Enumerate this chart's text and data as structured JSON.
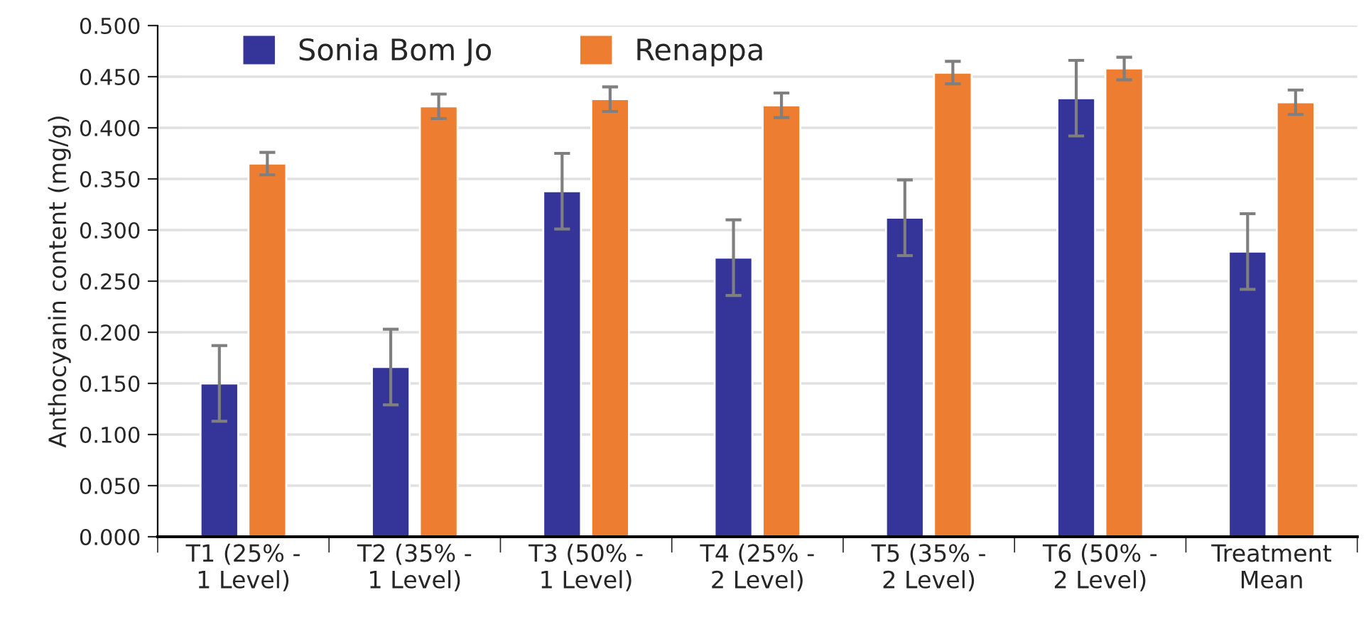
{
  "chart_data": {
    "type": "bar",
    "ylabel": "Anthocyanin content (mg/g)",
    "categories": [
      "T1 (25% -\n1 Level)",
      "T2 (35% -\n1 Level)",
      "T3 (50% -\n1 Level)",
      "T4 (25% -\n2 Level)",
      "T5 (35% -\n2 Level)",
      "T6 (50% -\n2 Level)",
      "Treatment\nMean"
    ],
    "series": [
      {
        "name": "Sonia Bom Jo",
        "color": "#353599",
        "values": [
          0.15,
          0.166,
          0.338,
          0.273,
          0.312,
          0.429,
          0.279
        ],
        "errors": [
          0.037,
          0.037,
          0.037,
          0.037,
          0.037,
          0.037,
          0.037
        ]
      },
      {
        "name": "Renappa",
        "color": "#ed7d31",
        "values": [
          0.365,
          0.421,
          0.428,
          0.422,
          0.454,
          0.458,
          0.425
        ],
        "errors": [
          0.011,
          0.012,
          0.012,
          0.012,
          0.011,
          0.011,
          0.012
        ]
      }
    ],
    "ylim": [
      0,
      0.5
    ],
    "yticks": [
      {
        "value": 0,
        "label": "0.000"
      },
      {
        "value": 0.05,
        "label": "0.050"
      },
      {
        "value": 0.1,
        "label": "0.100"
      },
      {
        "value": 0.15,
        "label": "0.150"
      },
      {
        "value": 0.2,
        "label": "0.200"
      },
      {
        "value": 0.25,
        "label": "0.250"
      },
      {
        "value": 0.3,
        "label": "0.300"
      },
      {
        "value": 0.35,
        "label": "0.350"
      },
      {
        "value": 0.4,
        "label": "0.400"
      },
      {
        "value": 0.45,
        "label": "0.450"
      },
      {
        "value": 0.5,
        "label": "0.500"
      }
    ],
    "grid": "y",
    "legend": "top left"
  }
}
